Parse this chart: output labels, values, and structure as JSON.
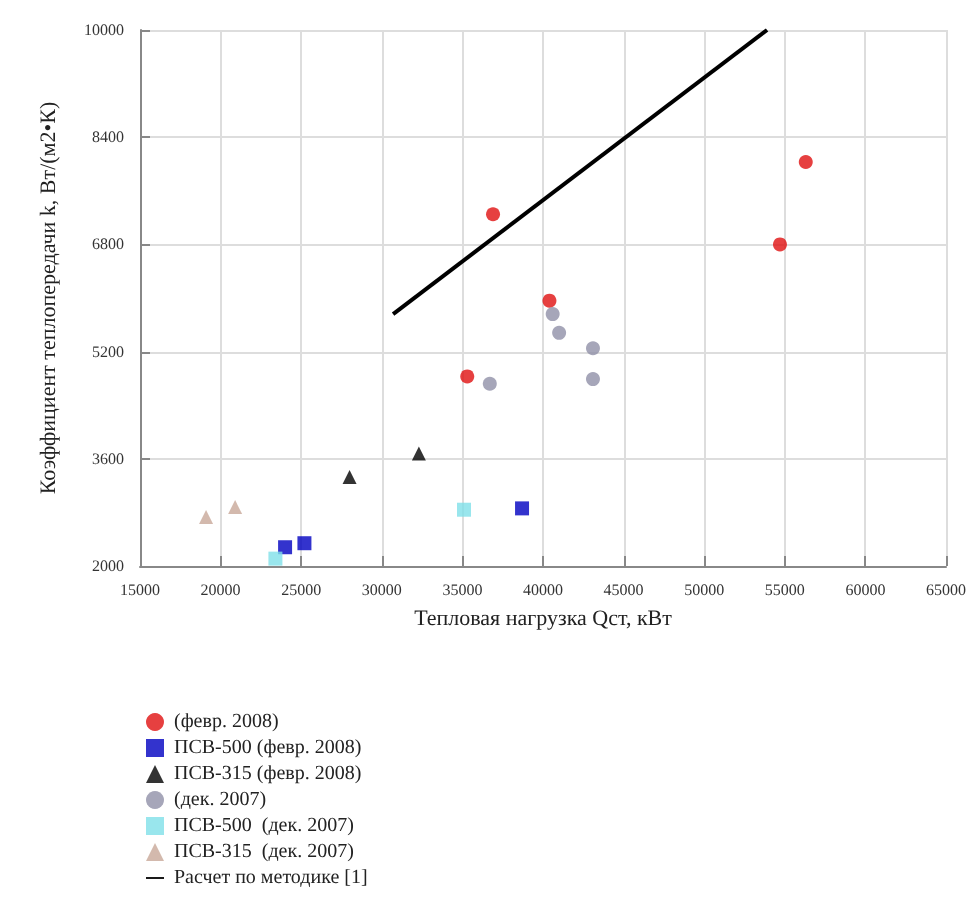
{
  "chart_data": {
    "type": "scatter",
    "xlabel": "Тепловая нагрузка Qст, кВт",
    "ylabel": "Коэффициент теплопередачи k, Вт/(м2•К)",
    "xlim": [
      15000,
      65000
    ],
    "xticks": [
      15000,
      20000,
      25000,
      30000,
      35000,
      40000,
      45000,
      50000,
      55000,
      60000,
      65000
    ],
    "ylim": [
      2000,
      10000
    ],
    "yticks": [
      2000,
      3600,
      5200,
      6800,
      8400,
      10000
    ],
    "grid": true,
    "legend": "bottom left",
    "series": [
      {
        "name": "(февр. 2008)",
        "color": "#e01010",
        "marker": "circle",
        "x": [
          36900,
          56300,
          54700,
          40400,
          35300
        ],
        "values": [
          7250,
          8030,
          6800,
          5960,
          4830
        ]
      },
      {
        "name": "ПСВ-500 (февр. 2008)",
        "color": "#0000c0",
        "marker": "square",
        "x": [
          24000,
          25200,
          38700
        ],
        "values": [
          2280,
          2340,
          2860
        ]
      },
      {
        "name": "ПСВ-315 (февр. 2008)",
        "color": "#000000",
        "marker": "triangle",
        "x": [
          28000,
          32300
        ],
        "values": [
          3330,
          3680
        ]
      },
      {
        "name": "(дек. 2007)",
        "color": "#9090a8",
        "marker": "circle",
        "x": [
          36700,
          40600,
          41000,
          43100,
          43100
        ],
        "values": [
          4720,
          5760,
          5480,
          5250,
          4790
        ]
      },
      {
        "name": "ПСВ-500  (дек. 2007)",
        "color": "#80e0e8",
        "marker": "square",
        "x": [
          23400,
          35100
        ],
        "values": [
          2110,
          2840
        ]
      },
      {
        "name": "ПСВ-315  (дек. 2007)",
        "color": "#c8a898",
        "marker": "triangle",
        "x": [
          19100,
          20900
        ],
        "values": [
          2730,
          2880
        ]
      },
      {
        "name": "Расчет по методике [1]",
        "color": "#000000",
        "type": "line",
        "marker": "none",
        "x": [
          30700,
          53900
        ],
        "values": [
          5760,
          10000
        ]
      }
    ]
  }
}
